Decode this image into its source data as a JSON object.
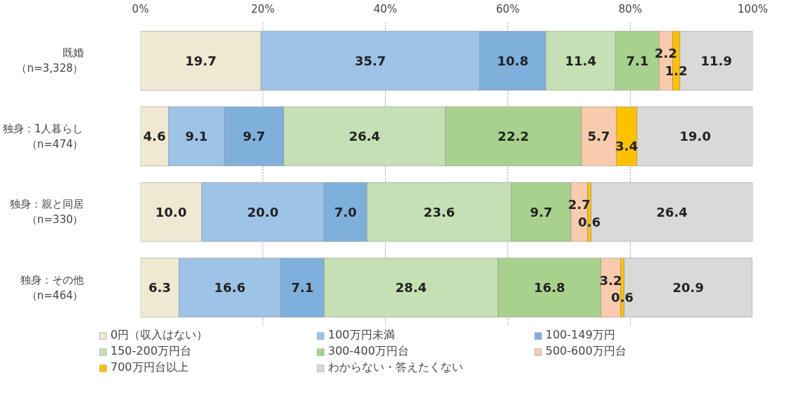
{
  "chart_data": {
    "type": "bar",
    "orientation": "horizontal",
    "stacked": true,
    "grid": "x",
    "legend": "bottom",
    "categories": [
      "既婚（n=3,328）",
      "独身：1人暮らし（n=474）",
      "独身：親と同居（n=330）",
      "独身：その他（n=464）"
    ],
    "xlim": [
      0,
      100
    ],
    "xticks": [
      {
        "value": 0,
        "label": "0%"
      },
      {
        "value": 20,
        "label": "20%"
      },
      {
        "value": 40,
        "label": "40%"
      },
      {
        "value": 60,
        "label": "60%"
      },
      {
        "value": 80,
        "label": "80%"
      },
      {
        "value": 100,
        "label": "100%"
      }
    ],
    "series": [
      {
        "name": "0円（収入はない）",
        "color": "#efe8d2",
        "values": [
          19.7,
          4.6,
          10.0,
          6.3
        ],
        "value_labels": [
          "19.7",
          "4.6",
          "10.0",
          "6.3"
        ]
      },
      {
        "name": "100万円未満",
        "color": "#9dc3e6",
        "values": [
          35.7,
          9.1,
          20.0,
          16.6
        ],
        "value_labels": [
          "35.7",
          "9.1",
          "20.0",
          "16.6"
        ]
      },
      {
        "name": "100-149万円",
        "color": "#7fb0dc",
        "values": [
          10.8,
          9.7,
          7.0,
          7.1
        ],
        "value_labels": [
          "10.8",
          "9.7",
          "7.0",
          "7.1"
        ]
      },
      {
        "name": "150-200万円台",
        "color": "#c5e0b4",
        "values": [
          11.4,
          26.4,
          23.6,
          28.4
        ],
        "value_labels": [
          "11.4",
          "26.4",
          "23.6",
          "28.4"
        ]
      },
      {
        "name": "300-400万円台",
        "color": "#a9d18e",
        "values": [
          7.1,
          22.2,
          9.7,
          16.8
        ],
        "value_labels": [
          "7.1",
          "22.2",
          "9.7",
          "16.8"
        ]
      },
      {
        "name": "500-600万円台",
        "color": "#f8cbad",
        "values": [
          2.2,
          5.7,
          2.7,
          3.2
        ],
        "value_labels": [
          "2.2",
          "5.7",
          "2.7",
          "3.2"
        ]
      },
      {
        "name": "700万円台以上",
        "color": "#ffc000",
        "values": [
          1.2,
          3.4,
          0.6,
          0.6
        ],
        "value_labels": [
          "1.2",
          "3.4",
          "0.6",
          "0.6"
        ]
      },
      {
        "name": "わからない・答えたくない",
        "color": "#d9d9d9",
        "values": [
          11.9,
          19.0,
          26.4,
          20.9
        ],
        "value_labels": [
          "11.9",
          "19.0",
          "26.4",
          "20.9"
        ]
      }
    ]
  }
}
